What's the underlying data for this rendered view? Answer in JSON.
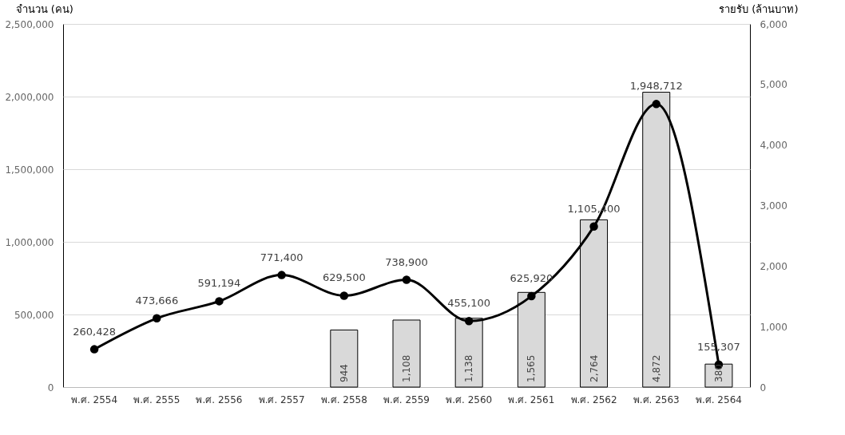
{
  "chart_data": {
    "type": "bar",
    "ylabel": "จำนวน (คน)",
    "y2label": "รายรับ (ล้านบาท)",
    "categories": [
      "พ.ศ. 2554",
      "พ.ศ. 2555",
      "พ.ศ. 2556",
      "พ.ศ. 2557",
      "พ.ศ. 2558",
      "พ.ศ. 2559",
      "พ.ศ. 2560",
      "พ.ศ. 2561",
      "พ.ศ. 2562",
      "พ.ศ. 2563",
      "พ.ศ. 2564"
    ],
    "series": [
      {
        "axis": "y2",
        "color": "#d9d9d9",
        "values": [
          null,
          null,
          null,
          null,
          944,
          1108,
          1138,
          1565,
          2764,
          4872,
          380
        ],
        "value_labels": [
          null,
          null,
          null,
          null,
          "944",
          "1,108",
          "1,138",
          "1,565",
          "2,764",
          "4,872",
          "380"
        ]
      },
      {
        "type": "line",
        "color": "#000000",
        "marker": "circle",
        "line_style": "solid",
        "values": [
          260428,
          473666,
          591194,
          771400,
          629500,
          738900,
          455100,
          625920,
          1105400,
          1948712,
          155307
        ],
        "value_labels": [
          "260,428",
          "473,666",
          "591,194",
          "771,400",
          "629,500",
          "738,900",
          "455,100",
          "625,920",
          "1,105,400",
          "1,948,712",
          "155,307"
        ]
      }
    ],
    "ylim": [
      0,
      2500000
    ],
    "yticks": [
      0,
      {
        "value": 500000,
        "label": "500,000"
      },
      {
        "value": 1000000,
        "label": "1,000,000"
      },
      {
        "value": 1500000,
        "label": "1,500,000"
      },
      {
        "value": 2000000,
        "label": "2,000,000"
      },
      {
        "value": 2500000,
        "label": "2,500,000"
      }
    ],
    "y2lim": [
      0,
      6000
    ],
    "y2ticks": [
      0,
      {
        "value": 1000,
        "label": "1,000"
      },
      {
        "value": 2000,
        "label": "2,000"
      },
      {
        "value": 3000,
        "label": "3,000"
      },
      {
        "value": 4000,
        "label": "4,000"
      },
      {
        "value": 5000,
        "label": "5,000"
      },
      {
        "value": 6000,
        "label": "6,000"
      }
    ],
    "grid": "y"
  }
}
